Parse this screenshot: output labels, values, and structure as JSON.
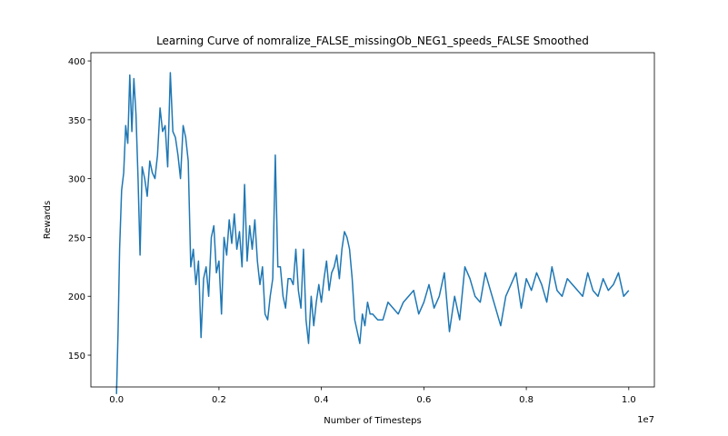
{
  "chart_data": {
    "type": "line",
    "title": "Learning Curve of nomralize_FALSE_missingOb_NEG1_speeds_FALSE Smoothed",
    "xlabel": "Number of Timesteps",
    "ylabel": "Rewards",
    "x_offset_label": "1e7",
    "xlim": [
      -0.05,
      1.05
    ],
    "ylim": [
      123,
      407
    ],
    "x_ticks": [
      0.0,
      0.2,
      0.4,
      0.6,
      0.8,
      1.0
    ],
    "x_tick_labels": [
      "0.0",
      "0.2",
      "0.4",
      "0.6",
      "0.8",
      "1.0"
    ],
    "y_ticks": [
      150,
      200,
      250,
      300,
      350,
      400
    ],
    "y_tick_labels": [
      "150",
      "200",
      "250",
      "300",
      "350",
      "400"
    ],
    "grid": false,
    "legend": "none",
    "color": "#1f77b4",
    "series": [
      {
        "x": [
          0.0,
          0.003,
          0.006,
          0.01,
          0.014,
          0.018,
          0.022,
          0.026,
          0.03,
          0.034,
          0.038,
          0.042,
          0.046,
          0.05,
          0.055,
          0.06,
          0.065,
          0.07,
          0.075,
          0.08,
          0.085,
          0.09,
          0.095,
          0.1,
          0.105,
          0.11,
          0.115,
          0.12,
          0.125,
          0.13,
          0.135,
          0.14,
          0.145,
          0.15,
          0.155,
          0.16,
          0.165,
          0.17,
          0.175,
          0.18,
          0.185,
          0.19,
          0.195,
          0.2,
          0.205,
          0.21,
          0.215,
          0.22,
          0.225,
          0.23,
          0.235,
          0.24,
          0.245,
          0.25,
          0.255,
          0.26,
          0.265,
          0.27,
          0.275,
          0.28,
          0.285,
          0.29,
          0.295,
          0.3,
          0.305,
          0.31,
          0.315,
          0.32,
          0.325,
          0.33,
          0.335,
          0.34,
          0.345,
          0.35,
          0.355,
          0.36,
          0.365,
          0.37,
          0.375,
          0.38,
          0.385,
          0.39,
          0.395,
          0.4,
          0.405,
          0.41,
          0.415,
          0.42,
          0.425,
          0.43,
          0.435,
          0.44,
          0.445,
          0.45,
          0.455,
          0.46,
          0.465,
          0.47,
          0.475,
          0.48,
          0.485,
          0.49,
          0.495,
          0.5,
          0.51,
          0.52,
          0.53,
          0.54,
          0.55,
          0.56,
          0.57,
          0.58,
          0.59,
          0.6,
          0.61,
          0.62,
          0.63,
          0.64,
          0.65,
          0.66,
          0.67,
          0.68,
          0.69,
          0.7,
          0.71,
          0.72,
          0.73,
          0.74,
          0.75,
          0.76,
          0.77,
          0.78,
          0.79,
          0.8,
          0.81,
          0.82,
          0.83,
          0.84,
          0.85,
          0.86,
          0.87,
          0.88,
          0.89,
          0.9,
          0.91,
          0.92,
          0.93,
          0.94,
          0.95,
          0.96,
          0.97,
          0.98,
          0.99,
          1.0
        ],
        "y": [
          117,
          170,
          240,
          290,
          305,
          345,
          330,
          388,
          340,
          385,
          355,
          300,
          235,
          310,
          300,
          285,
          315,
          305,
          300,
          320,
          360,
          340,
          345,
          310,
          390,
          340,
          335,
          320,
          300,
          345,
          335,
          315,
          225,
          240,
          210,
          230,
          165,
          215,
          225,
          200,
          250,
          260,
          220,
          230,
          185,
          250,
          235,
          265,
          245,
          270,
          240,
          255,
          225,
          295,
          230,
          260,
          240,
          265,
          230,
          210,
          225,
          185,
          180,
          200,
          215,
          320,
          225,
          225,
          200,
          190,
          215,
          215,
          210,
          240,
          205,
          190,
          240,
          180,
          160,
          200,
          175,
          195,
          210,
          195,
          215,
          230,
          205,
          220,
          225,
          235,
          215,
          240,
          255,
          250,
          240,
          215,
          180,
          170,
          160,
          185,
          175,
          195,
          185,
          185,
          180,
          180,
          195,
          190,
          185,
          195,
          200,
          205,
          185,
          195,
          210,
          190,
          200,
          220,
          170,
          200,
          180,
          225,
          215,
          200,
          195,
          220,
          205,
          190,
          175,
          200,
          210,
          220,
          190,
          215,
          205,
          220,
          210,
          195,
          225,
          205,
          200,
          215,
          210,
          205,
          200,
          220,
          205,
          200,
          215,
          205,
          210,
          220,
          200,
          205
        ]
      }
    ]
  }
}
